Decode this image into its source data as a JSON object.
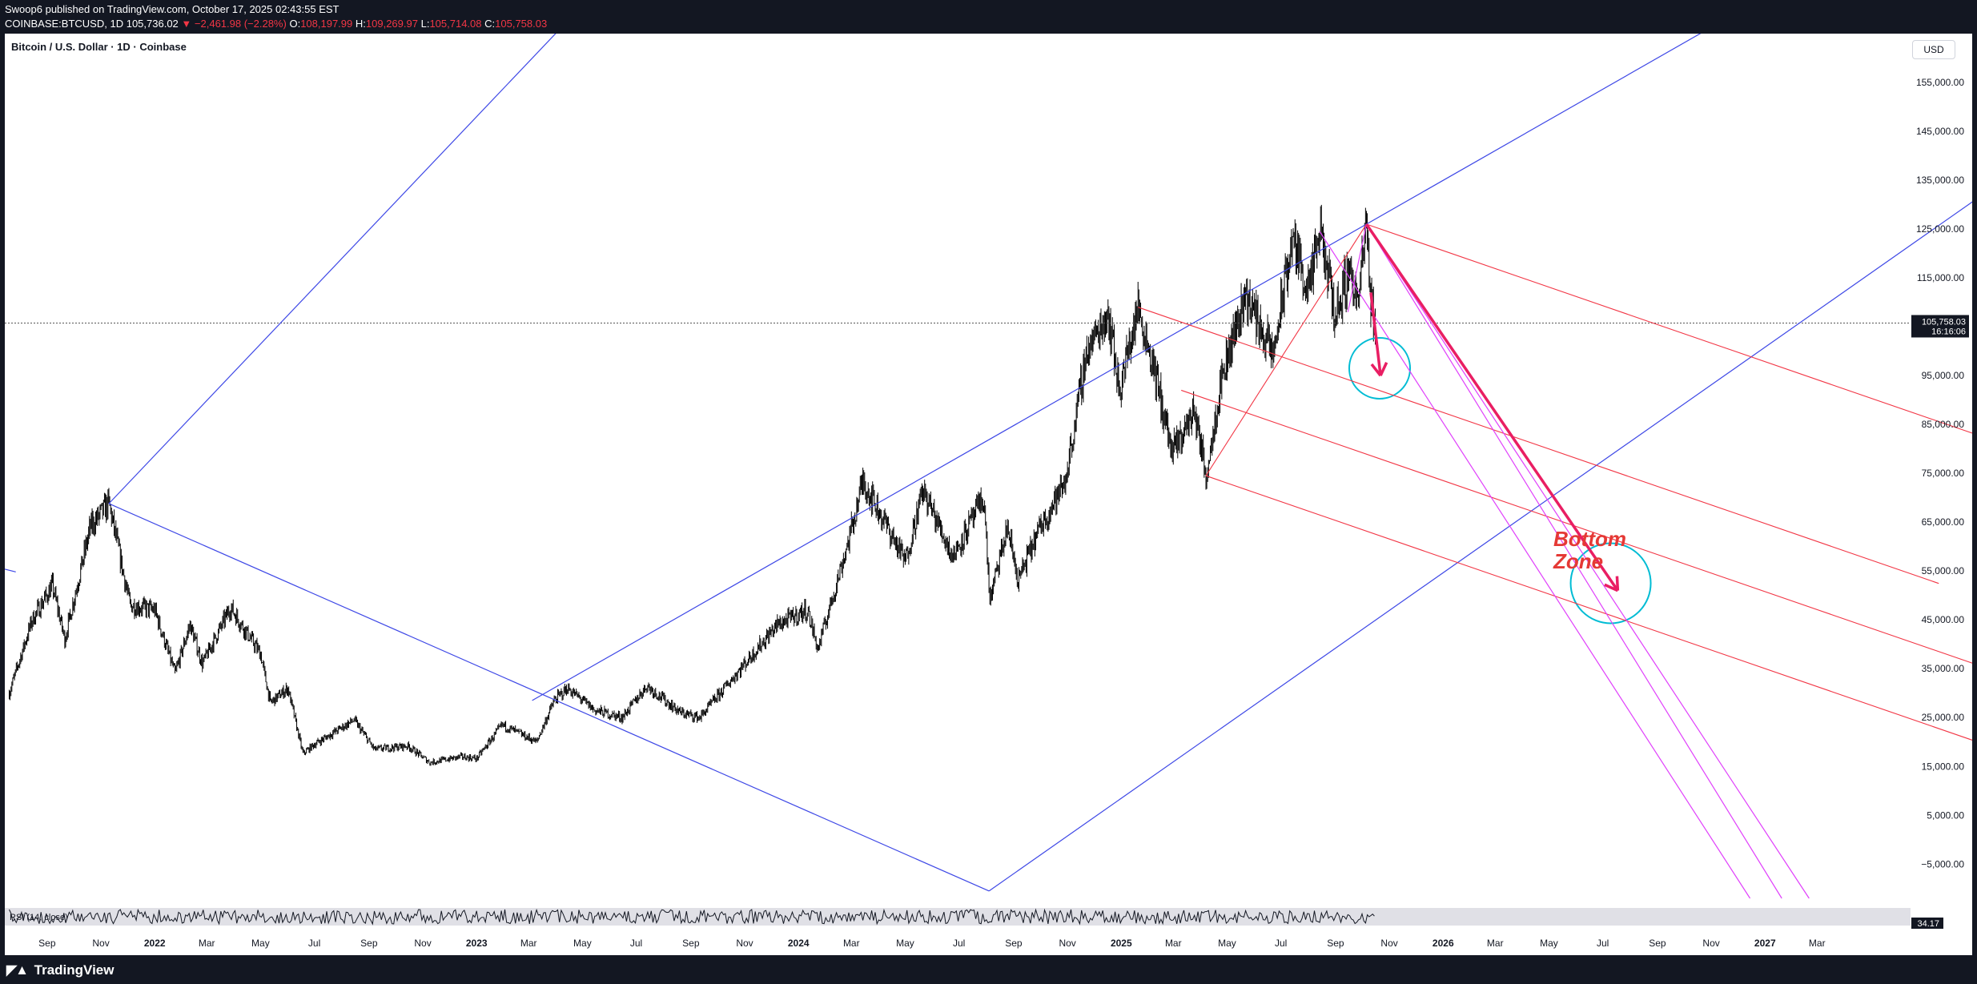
{
  "header": {
    "publish_line": "Swoop6 published on TradingView.com, October 17, 2025 02:43:55 EST",
    "symbol": "COINBASE:BTCUSD, 1D",
    "last": "105,736.02",
    "change": "▼ −2,461.98 (−2.28%)",
    "open_label": "O:",
    "open": "108,197.99",
    "high_label": "H:",
    "high": "109,269.97",
    "low_label": "L:",
    "low": "105,714.08",
    "close_label": "C:",
    "close": "105,758.03"
  },
  "chart": {
    "title": "Bitcoin / U.S. Dollar · 1D · Coinbase",
    "currency": "USD",
    "price_tag": "105,758.03",
    "countdown_tag": "16:16:06",
    "annotation_text": [
      "Bottom",
      "Zone"
    ],
    "rsi_label": "RSI (14, close)",
    "rsi_value": "34.17"
  },
  "footer": {
    "brand": "TradingView",
    "brand_icon": "tradingview-logo-icon"
  },
  "colors": {
    "background": "#131722",
    "candles": "#000000",
    "blue_channel": "#3e48e6",
    "red_pitchfork": "#f23645",
    "magenta_channel": "#e040fb",
    "forecast_arrow": "#e91e63",
    "circle_marker": "#00bcd4",
    "annotation_text": "#e53935"
  },
  "chart_data": {
    "type": "candlestick",
    "title": "Bitcoin / U.S. Dollar · 1D · Coinbase",
    "y_axis_ticks": [
      "155,000.00",
      "145,000.00",
      "135,000.00",
      "125,000.00",
      "115,000.00",
      "95,000.00",
      "85,000.00",
      "75,000.00",
      "65,000.00",
      "55,000.00",
      "45,000.00",
      "35,000.00",
      "25,000.00",
      "15,000.00",
      "5,000.00",
      "−5,000.00"
    ],
    "y_tick_values": [
      155000,
      145000,
      135000,
      125000,
      115000,
      95000,
      85000,
      75000,
      65000,
      55000,
      45000,
      35000,
      25000,
      15000,
      5000,
      -5000
    ],
    "x_axis_ticks": [
      "Sep",
      "Nov",
      "2022",
      "Mar",
      "May",
      "Jul",
      "Sep",
      "Nov",
      "2023",
      "Mar",
      "May",
      "Jul",
      "Sep",
      "Nov",
      "2024",
      "Mar",
      "May",
      "Jul",
      "Sep",
      "Nov",
      "2025",
      "Mar",
      "May",
      "Jul",
      "Sep",
      "Nov",
      "2026",
      "Mar",
      "May",
      "Jul",
      "Sep",
      "Nov",
      "2027",
      "Mar"
    ],
    "x_tick_dates": [
      "2021-09-01",
      "2021-11-01",
      "2022-01-01",
      "2022-03-01",
      "2022-05-01",
      "2022-07-01",
      "2022-09-01",
      "2022-11-01",
      "2023-01-01",
      "2023-03-01",
      "2023-05-01",
      "2023-07-01",
      "2023-09-01",
      "2023-11-01",
      "2024-01-01",
      "2024-03-01",
      "2024-05-01",
      "2024-07-01",
      "2024-09-01",
      "2024-11-01",
      "2025-01-01",
      "2025-03-01",
      "2025-05-01",
      "2025-07-01",
      "2025-09-01",
      "2025-11-01",
      "2026-01-01",
      "2026-03-01",
      "2026-05-01",
      "2026-07-01",
      "2026-09-01",
      "2026-11-01",
      "2027-01-01",
      "2027-03-01"
    ],
    "ylim": [
      -12000,
      165000
    ],
    "xlim": [
      "2021-07-15",
      "2027-06-15"
    ],
    "last_price": 105758.03,
    "price_path": [
      [
        "2021-07-20",
        30000
      ],
      [
        "2021-08-15",
        45000
      ],
      [
        "2021-09-07",
        52000
      ],
      [
        "2021-09-21",
        41000
      ],
      [
        "2021-10-20",
        64000
      ],
      [
        "2021-11-10",
        68800
      ],
      [
        "2021-12-04",
        48000
      ],
      [
        "2022-01-01",
        47000
      ],
      [
        "2022-01-24",
        34000
      ],
      [
        "2022-02-10",
        44000
      ],
      [
        "2022-02-24",
        36000
      ],
      [
        "2022-03-28",
        47500
      ],
      [
        "2022-05-01",
        38000
      ],
      [
        "2022-05-12",
        28000
      ],
      [
        "2022-06-01",
        31000
      ],
      [
        "2022-06-18",
        17600
      ],
      [
        "2022-07-01",
        19500
      ],
      [
        "2022-08-15",
        24500
      ],
      [
        "2022-09-07",
        18500
      ],
      [
        "2022-10-15",
        19200
      ],
      [
        "2022-11-09",
        15800
      ],
      [
        "2022-12-15",
        17000
      ],
      [
        "2023-01-01",
        16600
      ],
      [
        "2023-01-30",
        23500
      ],
      [
        "2023-03-10",
        20000
      ],
      [
        "2023-03-30",
        28500
      ],
      [
        "2023-04-14",
        31000
      ],
      [
        "2023-05-15",
        26500
      ],
      [
        "2023-06-15",
        25000
      ],
      [
        "2023-07-13",
        31500
      ],
      [
        "2023-08-20",
        26000
      ],
      [
        "2023-09-11",
        25000
      ],
      [
        "2023-10-25",
        34500
      ],
      [
        "2023-12-08",
        44000
      ],
      [
        "2024-01-11",
        47000
      ],
      [
        "2024-01-23",
        39000
      ],
      [
        "2024-02-28",
        62000
      ],
      [
        "2024-03-14",
        73500
      ],
      [
        "2024-05-01",
        57000
      ],
      [
        "2024-05-21",
        71500
      ],
      [
        "2024-06-24",
        58000
      ],
      [
        "2024-07-29",
        70000
      ],
      [
        "2024-08-05",
        49000
      ],
      [
        "2024-08-25",
        64000
      ],
      [
        "2024-09-06",
        53000
      ],
      [
        "2024-10-01",
        64000
      ],
      [
        "2024-10-29",
        73000
      ],
      [
        "2024-11-12",
        88000
      ],
      [
        "2024-11-22",
        99500
      ],
      [
        "2024-12-17",
        108000
      ],
      [
        "2024-12-30",
        92000
      ],
      [
        "2025-01-20",
        109000
      ],
      [
        "2025-02-05",
        98000
      ],
      [
        "2025-02-28",
        79000
      ],
      [
        "2025-03-25",
        88000
      ],
      [
        "2025-04-07",
        74500
      ],
      [
        "2025-04-25",
        95000
      ],
      [
        "2025-05-22",
        111800
      ],
      [
        "2025-06-22",
        99000
      ],
      [
        "2025-07-14",
        123000
      ],
      [
        "2025-08-02",
        112000
      ],
      [
        "2025-08-14",
        124500
      ],
      [
        "2025-09-01",
        107500
      ],
      [
        "2025-09-18",
        117500
      ],
      [
        "2025-09-26",
        109000
      ],
      [
        "2025-10-06",
        126000
      ],
      [
        "2025-10-11",
        110500
      ],
      [
        "2025-10-16",
        105758
      ]
    ],
    "series": [
      {
        "name": "BTCUSD",
        "type": "candlestick"
      },
      {
        "name": "RSI (14, close)",
        "type": "line",
        "last": 34.17
      }
    ]
  }
}
